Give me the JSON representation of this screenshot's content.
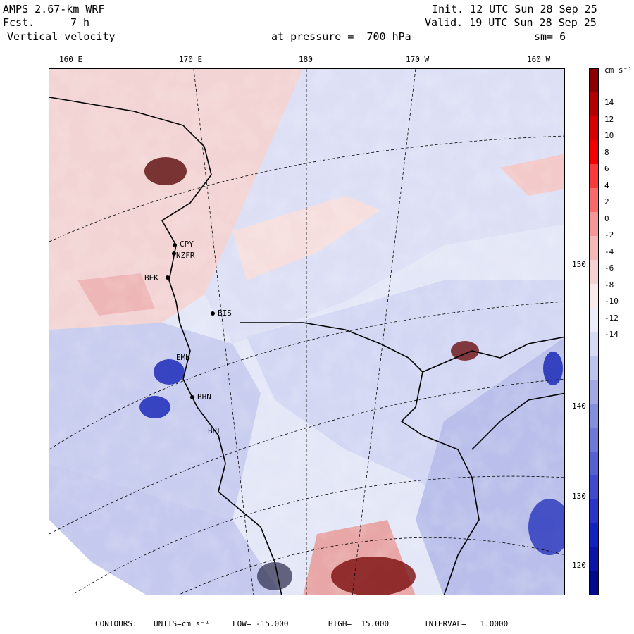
{
  "header": {
    "model": "AMPS 2.67-km WRF",
    "fcst_label": "Fcst.",
    "fcst_value": "7 h",
    "field": "Vertical velocity",
    "init": "Init. 12 UTC Sun 28 Sep 25",
    "valid": "Valid. 19 UTC Sun 28 Sep 25",
    "pressure": "at pressure =  700 hPa",
    "smoothing": "sm= 6"
  },
  "longitude_ticks": [
    "160 E",
    "170 E",
    "180",
    "170 W",
    "160 W"
  ],
  "right_ticks": [
    "150 W",
    "140 W",
    "130 W",
    "120 W"
  ],
  "stations": [
    "CPY",
    "NZFR",
    "BEK",
    "BIS",
    "EMN",
    "BHN",
    "BRL"
  ],
  "colorbar": {
    "unit_label": "cm s⁻¹",
    "labels": [
      "14",
      "12",
      "10",
      "8",
      "6",
      "4",
      "2",
      "0",
      "-2",
      "-4",
      "-6",
      "-8",
      "-10",
      "-12",
      "-14"
    ],
    "colors": [
      "#8a0000",
      "#b30000",
      "#d60000",
      "#f20000",
      "#f83a3a",
      "#f86a6a",
      "#f49696",
      "#f4b8b8",
      "#f5d2d2",
      "#f8eaea",
      "#ecedf8",
      "#d6daf2",
      "#bcc3ec",
      "#a0a9e4",
      "#8590dc",
      "#6d79d5",
      "#5561d0",
      "#3f4bcc",
      "#2835c8",
      "#1222c0",
      "#0a14a8",
      "#000a8a"
    ]
  },
  "footer": {
    "contours_label": "CONTOURS:",
    "units_text": "UNITS=cm s⁻¹",
    "low_text": "LOW= -15.000",
    "high_text": "HIGH=  15.000",
    "interval_text": "INTERVAL=   1.0000"
  }
}
